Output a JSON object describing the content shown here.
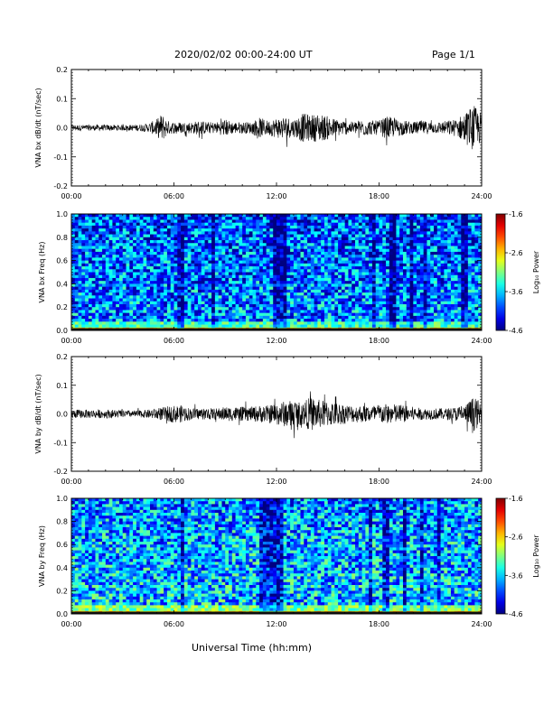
{
  "header": {
    "title": "2020/02/02  00:00-24:00 UT",
    "page": "Page 1/1"
  },
  "x_axis_label": "Universal Time (hh:mm)",
  "chart_data": [
    {
      "type": "line",
      "ylabel": "VNA bx dB/dt (nT/sec)",
      "ylim": [
        -0.2,
        0.2
      ],
      "yticks": [
        "0.2",
        "0.1",
        "0.0",
        "-0.1",
        "-0.2"
      ],
      "xticks": [
        "00:00",
        "06:00",
        "12:00",
        "18:00",
        "24:00"
      ],
      "xlim_hours": [
        0,
        24
      ],
      "series": [
        {
          "x_hours": [
            0,
            0.5,
            1,
            1.5,
            2,
            2.5,
            3,
            3.5,
            4,
            4.5,
            5,
            5.3,
            5.6,
            6,
            6.5,
            7,
            7.5,
            8,
            8.5,
            9,
            9.5,
            10,
            10.5,
            11,
            11.5,
            12,
            12.5,
            13,
            13.5,
            14,
            14.5,
            15,
            15.5,
            16,
            16.5,
            17,
            17.5,
            18,
            18.5,
            19,
            19.5,
            20,
            20.5,
            21,
            21.5,
            22,
            22.5,
            23,
            23.5,
            24
          ],
          "amplitude": [
            0.01,
            0.01,
            0.01,
            0.01,
            0.01,
            0.01,
            0.01,
            0.01,
            0.012,
            0.015,
            0.03,
            0.05,
            0.025,
            0.02,
            0.02,
            0.02,
            0.025,
            0.02,
            0.02,
            0.03,
            0.02,
            0.02,
            0.02,
            0.035,
            0.025,
            0.035,
            0.04,
            0.03,
            0.05,
            0.045,
            0.05,
            0.04,
            0.03,
            0.025,
            0.02,
            0.03,
            0.025,
            0.025,
            0.04,
            0.03,
            0.025,
            0.02,
            0.025,
            0.02,
            0.02,
            0.025,
            0.03,
            0.05,
            0.08,
            0.05
          ]
        }
      ]
    },
    {
      "type": "heatmap",
      "ylabel": "VNA bx Freq (Hz)",
      "ylim": [
        0.0,
        1.0
      ],
      "yticks": [
        "1.0",
        "0.8",
        "0.6",
        "0.4",
        "0.2",
        "0.0"
      ],
      "xticks": [
        "00:00",
        "06:00",
        "12:00",
        "18:00",
        "24:00"
      ],
      "xlim_hours": [
        0,
        24
      ],
      "colorbar": {
        "label": "Log₁₀ Power",
        "ticks": [
          "-1.6",
          "-2.6",
          "-3.6",
          "-4.6"
        ],
        "range": [
          -4.6,
          -1.6
        ]
      },
      "typical_power": {
        "low_freq_band": -2.6,
        "background": -3.8
      },
      "dark_streaks_hours": [
        6.4,
        8.3,
        12.0,
        12.4,
        17.7,
        18.8,
        19.9,
        20.7,
        23.0
      ]
    },
    {
      "type": "line",
      "ylabel": "VNA by dB/dt (nT/sec)",
      "ylim": [
        -0.2,
        0.2
      ],
      "yticks": [
        "0.2",
        "0.1",
        "0.0",
        "-0.1",
        "-0.2"
      ],
      "xticks": [
        "00:00",
        "06:00",
        "12:00",
        "18:00",
        "24:00"
      ],
      "xlim_hours": [
        0,
        24
      ],
      "series": [
        {
          "x_hours": [
            0,
            0.5,
            1,
            1.5,
            2,
            2.5,
            3,
            3.5,
            4,
            4.5,
            5,
            5.5,
            6,
            6.5,
            7,
            7.5,
            8,
            8.5,
            9,
            9.5,
            10,
            10.5,
            11,
            11.5,
            12,
            12.5,
            13,
            13.5,
            14,
            14.5,
            15,
            15.5,
            16,
            16.5,
            17,
            17.5,
            18,
            18.5,
            19,
            19.5,
            20,
            20.5,
            21,
            21.5,
            22,
            22.5,
            23,
            23.5,
            24
          ],
          "amplitude": [
            0.015,
            0.015,
            0.015,
            0.015,
            0.015,
            0.015,
            0.012,
            0.012,
            0.012,
            0.015,
            0.02,
            0.025,
            0.03,
            0.03,
            0.02,
            0.02,
            0.02,
            0.02,
            0.025,
            0.025,
            0.025,
            0.025,
            0.03,
            0.03,
            0.04,
            0.045,
            0.05,
            0.04,
            0.06,
            0.05,
            0.045,
            0.04,
            0.035,
            0.03,
            0.03,
            0.03,
            0.035,
            0.035,
            0.035,
            0.03,
            0.025,
            0.02,
            0.02,
            0.02,
            0.02,
            0.025,
            0.03,
            0.06,
            0.04
          ]
        }
      ]
    },
    {
      "type": "heatmap",
      "ylabel": "VNA by Freq (Hz)",
      "ylim": [
        0.0,
        1.0
      ],
      "yticks": [
        "1.0",
        "0.8",
        "0.6",
        "0.4",
        "0.2",
        "0.0"
      ],
      "xticks": [
        "00:00",
        "06:00",
        "12:00",
        "18:00",
        "24:00"
      ],
      "xlim_hours": [
        0,
        24
      ],
      "colorbar": {
        "label": "Log₁₀ Power",
        "ticks": [
          "-1.6",
          "-2.6",
          "-3.6",
          "-4.6"
        ],
        "range": [
          -4.6,
          -1.6
        ]
      },
      "typical_power": {
        "low_freq_band": -2.6,
        "background": -3.6
      },
      "dark_streaks_hours": [
        6.5,
        11.2,
        11.6,
        12.0,
        12.2,
        17.5,
        18.4,
        19.5,
        20.5,
        21.5
      ]
    }
  ]
}
